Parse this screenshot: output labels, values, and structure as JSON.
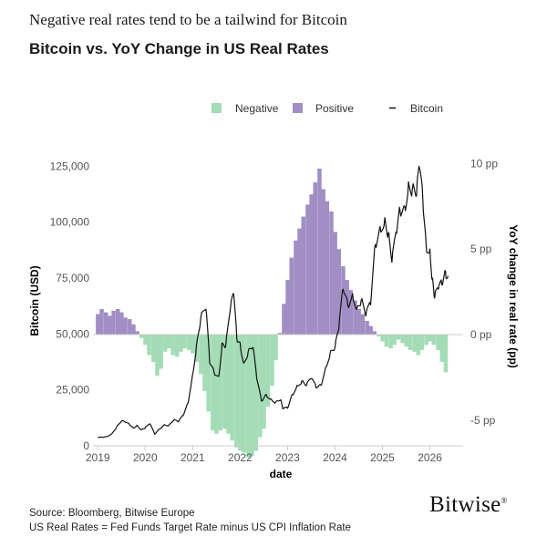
{
  "header": {
    "subtitle": "Negative real rates tend to be a tailwind for Bitcoin",
    "title": "Bitcoin vs. YoY Change in US Real Rates"
  },
  "footer": {
    "source_line": "Source: Bloomberg, Bitwise Europe",
    "note_line": "US Real Rates = Fed Funds Target Rate minus US CPI Inflation Rate",
    "logo": "Bitwise"
  },
  "colors": {
    "negative": "#a3dcb5",
    "positive": "#a08ec4",
    "bitcoin": "#111111",
    "axis": "#cccccc"
  },
  "chart_data": {
    "type": "bar+line",
    "xlabel": "date",
    "ylabel_left": "Bitcoin (USD)",
    "ylabel_right": "YoY change in real rate (pp)",
    "ylim_left": [
      0,
      130000
    ],
    "ylim_right": [
      -6.5,
      10.5
    ],
    "xlim": [
      2018.9,
      2026.7
    ],
    "left_ticks": [
      {
        "value": 0,
        "label": "0"
      },
      {
        "value": 25000,
        "label": "25,000"
      },
      {
        "value": 50000,
        "label": "50,000"
      },
      {
        "value": 75000,
        "label": "75,000"
      },
      {
        "value": 100000,
        "label": "100,000"
      },
      {
        "value": 125000,
        "label": "125,000"
      }
    ],
    "right_ticks": [
      {
        "value": 10,
        "label": "10 pp"
      },
      {
        "value": 5,
        "label": "5 pp"
      },
      {
        "value": 0,
        "label": "0 pp"
      },
      {
        "value": -5,
        "label": "-5 pp"
      }
    ],
    "x_ticks": [
      {
        "value": 2019,
        "label": "2019"
      },
      {
        "value": 2020,
        "label": "2020"
      },
      {
        "value": 2021,
        "label": "2021"
      },
      {
        "value": 2022,
        "label": "2022"
      },
      {
        "value": 2023,
        "label": "2023"
      },
      {
        "value": 2024,
        "label": "2024"
      },
      {
        "value": 2025,
        "label": "2025"
      },
      {
        "value": 2026,
        "label": "2026"
      }
    ],
    "legend": [
      {
        "name": "Negative",
        "kind": "bar",
        "color": "#a3dcb5"
      },
      {
        "name": "Positive",
        "kind": "bar",
        "color": "#a08ec4"
      },
      {
        "name": "Bitcoin",
        "kind": "line",
        "color": "#111111"
      }
    ],
    "legend_position": "top-center",
    "grid": false,
    "real_rate_change_pp": [
      [
        2019.0,
        1.2
      ],
      [
        2019.08,
        1.5
      ],
      [
        2019.17,
        1.3
      ],
      [
        2019.25,
        1.1
      ],
      [
        2019.33,
        1.4
      ],
      [
        2019.42,
        1.5
      ],
      [
        2019.5,
        1.3
      ],
      [
        2019.58,
        1.0
      ],
      [
        2019.67,
        0.9
      ],
      [
        2019.75,
        0.6
      ],
      [
        2019.83,
        0.2
      ],
      [
        2019.92,
        -0.2
      ],
      [
        2020.0,
        -0.6
      ],
      [
        2020.08,
        -1.2
      ],
      [
        2020.17,
        -1.6
      ],
      [
        2020.25,
        -2.4
      ],
      [
        2020.33,
        -2.0
      ],
      [
        2020.42,
        -1.0
      ],
      [
        2020.5,
        -0.8
      ],
      [
        2020.58,
        -1.2
      ],
      [
        2020.67,
        -1.3
      ],
      [
        2020.75,
        -1.0
      ],
      [
        2020.83,
        -0.8
      ],
      [
        2020.92,
        -0.9
      ],
      [
        2021.0,
        -1.1
      ],
      [
        2021.08,
        -1.6
      ],
      [
        2021.17,
        -2.3
      ],
      [
        2021.25,
        -3.3
      ],
      [
        2021.33,
        -4.5
      ],
      [
        2021.42,
        -5.6
      ],
      [
        2021.5,
        -5.8
      ],
      [
        2021.58,
        -5.6
      ],
      [
        2021.67,
        -5.5
      ],
      [
        2021.75,
        -5.8
      ],
      [
        2021.83,
        -6.2
      ],
      [
        2021.92,
        -6.6
      ],
      [
        2022.0,
        -6.8
      ],
      [
        2022.08,
        -6.9
      ],
      [
        2022.17,
        -7.2
      ],
      [
        2022.25,
        -7.1
      ],
      [
        2022.33,
        -6.8
      ],
      [
        2022.42,
        -6.0
      ],
      [
        2022.5,
        -5.5
      ],
      [
        2022.58,
        -4.2
      ],
      [
        2022.67,
        -3.0
      ],
      [
        2022.75,
        -1.5
      ],
      [
        2022.83,
        0.1
      ],
      [
        2022.92,
        1.8
      ],
      [
        2023.0,
        3.2
      ],
      [
        2023.08,
        4.5
      ],
      [
        2023.17,
        5.5
      ],
      [
        2023.25,
        6.2
      ],
      [
        2023.33,
        6.9
      ],
      [
        2023.42,
        7.6
      ],
      [
        2023.5,
        8.2
      ],
      [
        2023.58,
        8.9
      ],
      [
        2023.67,
        9.7
      ],
      [
        2023.75,
        8.5
      ],
      [
        2023.83,
        7.8
      ],
      [
        2023.92,
        7.2
      ],
      [
        2024.0,
        6.0
      ],
      [
        2024.08,
        5.0
      ],
      [
        2024.17,
        4.0
      ],
      [
        2024.25,
        3.2
      ],
      [
        2024.33,
        2.6
      ],
      [
        2024.42,
        2.0
      ],
      [
        2024.5,
        1.5
      ],
      [
        2024.58,
        1.2
      ],
      [
        2024.67,
        0.8
      ],
      [
        2024.75,
        0.5
      ],
      [
        2024.83,
        0.2
      ],
      [
        2024.92,
        -0.1
      ],
      [
        2025.0,
        -0.4
      ],
      [
        2025.08,
        -0.7
      ],
      [
        2025.17,
        -0.8
      ],
      [
        2025.25,
        -0.6
      ],
      [
        2025.33,
        -0.3
      ],
      [
        2025.42,
        -0.5
      ],
      [
        2025.5,
        -0.7
      ],
      [
        2025.58,
        -0.9
      ],
      [
        2025.67,
        -1.0
      ],
      [
        2025.75,
        -1.2
      ],
      [
        2025.83,
        -0.9
      ],
      [
        2025.92,
        -0.6
      ],
      [
        2026.0,
        -0.4
      ],
      [
        2026.08,
        -0.6
      ],
      [
        2026.17,
        -0.9
      ],
      [
        2026.25,
        -1.6
      ],
      [
        2026.33,
        -2.2
      ]
    ],
    "bitcoin_usd": [
      [
        2019.0,
        3700
      ],
      [
        2019.1,
        3800
      ],
      [
        2019.2,
        4200
      ],
      [
        2019.3,
        5500
      ],
      [
        2019.4,
        8500
      ],
      [
        2019.5,
        11000
      ],
      [
        2019.58,
        10500
      ],
      [
        2019.67,
        9500
      ],
      [
        2019.75,
        8000
      ],
      [
        2019.83,
        9200
      ],
      [
        2019.92,
        7200
      ],
      [
        2020.0,
        8000
      ],
      [
        2020.1,
        9800
      ],
      [
        2020.2,
        5200
      ],
      [
        2020.3,
        7500
      ],
      [
        2020.4,
        9500
      ],
      [
        2020.5,
        9200
      ],
      [
        2020.6,
        11500
      ],
      [
        2020.7,
        10700
      ],
      [
        2020.8,
        13500
      ],
      [
        2020.9,
        19000
      ],
      [
        2021.0,
        32000
      ],
      [
        2021.08,
        45000
      ],
      [
        2021.17,
        57000
      ],
      [
        2021.28,
        61000
      ],
      [
        2021.36,
        37000
      ],
      [
        2021.45,
        33000
      ],
      [
        2021.55,
        31000
      ],
      [
        2021.62,
        46000
      ],
      [
        2021.7,
        45000
      ],
      [
        2021.8,
        62000
      ],
      [
        2021.87,
        67000
      ],
      [
        2021.93,
        48000
      ],
      [
        2022.0,
        46000
      ],
      [
        2022.08,
        37000
      ],
      [
        2022.17,
        42000
      ],
      [
        2022.27,
        44000
      ],
      [
        2022.35,
        30000
      ],
      [
        2022.45,
        20000
      ],
      [
        2022.55,
        23000
      ],
      [
        2022.65,
        21000
      ],
      [
        2022.75,
        19500
      ],
      [
        2022.85,
        20500
      ],
      [
        2022.9,
        16500
      ],
      [
        2023.0,
        16800
      ],
      [
        2023.1,
        23000
      ],
      [
        2023.2,
        27000
      ],
      [
        2023.3,
        29000
      ],
      [
        2023.4,
        27000
      ],
      [
        2023.5,
        30000
      ],
      [
        2023.6,
        26000
      ],
      [
        2023.7,
        27000
      ],
      [
        2023.8,
        35000
      ],
      [
        2023.9,
        42000
      ],
      [
        2024.0,
        44000
      ],
      [
        2024.08,
        52000
      ],
      [
        2024.17,
        70000
      ],
      [
        2024.27,
        63000
      ],
      [
        2024.37,
        68000
      ],
      [
        2024.47,
        62000
      ],
      [
        2024.55,
        65000
      ],
      [
        2024.65,
        58000
      ],
      [
        2024.75,
        63000
      ],
      [
        2024.85,
        90000
      ],
      [
        2024.95,
        98000
      ],
      [
        2025.05,
        102000
      ],
      [
        2025.12,
        95000
      ],
      [
        2025.2,
        82000
      ],
      [
        2025.3,
        95000
      ],
      [
        2025.37,
        105000
      ],
      [
        2025.47,
        107000
      ],
      [
        2025.55,
        118000
      ],
      [
        2025.63,
        115000
      ],
      [
        2025.72,
        112000
      ],
      [
        2025.78,
        124000
      ],
      [
        2025.85,
        110000
      ],
      [
        2025.92,
        90000
      ],
      [
        2026.0,
        88000
      ],
      [
        2026.05,
        75000
      ],
      [
        2026.1,
        66000
      ],
      [
        2026.18,
        70000
      ],
      [
        2026.25,
        72000
      ],
      [
        2026.33,
        78000
      ],
      [
        2026.38,
        76000
      ]
    ]
  }
}
